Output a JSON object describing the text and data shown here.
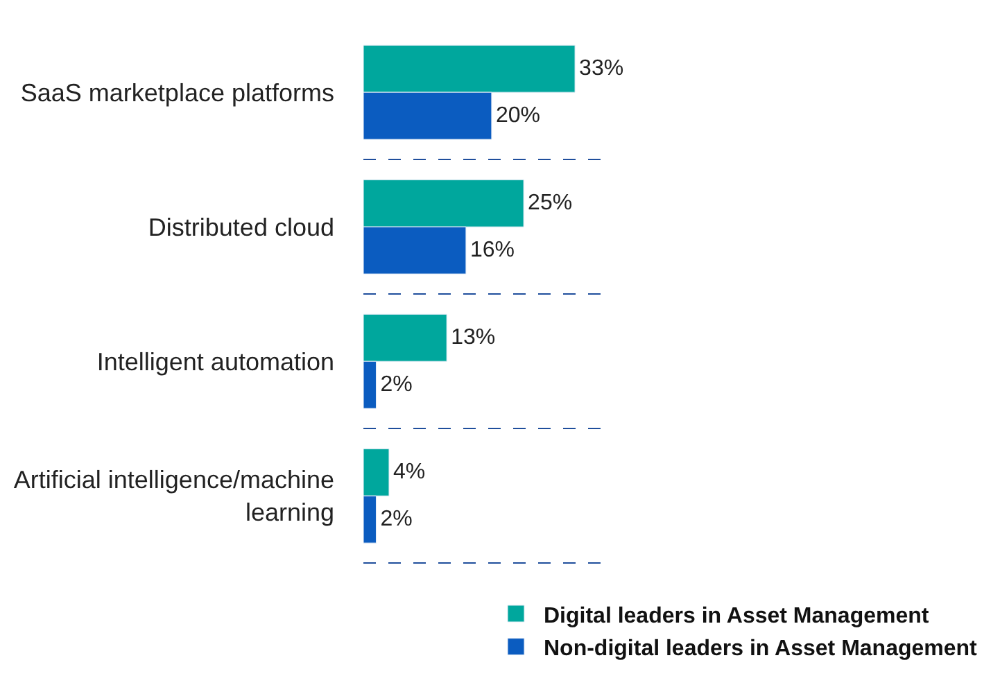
{
  "chart_data": {
    "type": "bar",
    "orientation": "horizontal",
    "categories": [
      "SaaS marketplace platforms",
      "Distributed cloud",
      "Intelligent automation",
      "Artificial intelligence/machine learning"
    ],
    "series": [
      {
        "name": "Digital leaders in Asset Management",
        "color": "#00a79d",
        "values": [
          33,
          25,
          13,
          4
        ],
        "value_labels": [
          "33%",
          "25%",
          "13%",
          "4%"
        ]
      },
      {
        "name": "Non-digital leaders in Asset Management",
        "color": "#0b5cc0",
        "values": [
          20,
          16,
          2,
          2
        ],
        "value_labels": [
          "20%",
          "16%",
          "2%",
          "2%"
        ]
      }
    ],
    "grid": "y",
    "legend": "bottom",
    "tick_labels": "y"
  }
}
